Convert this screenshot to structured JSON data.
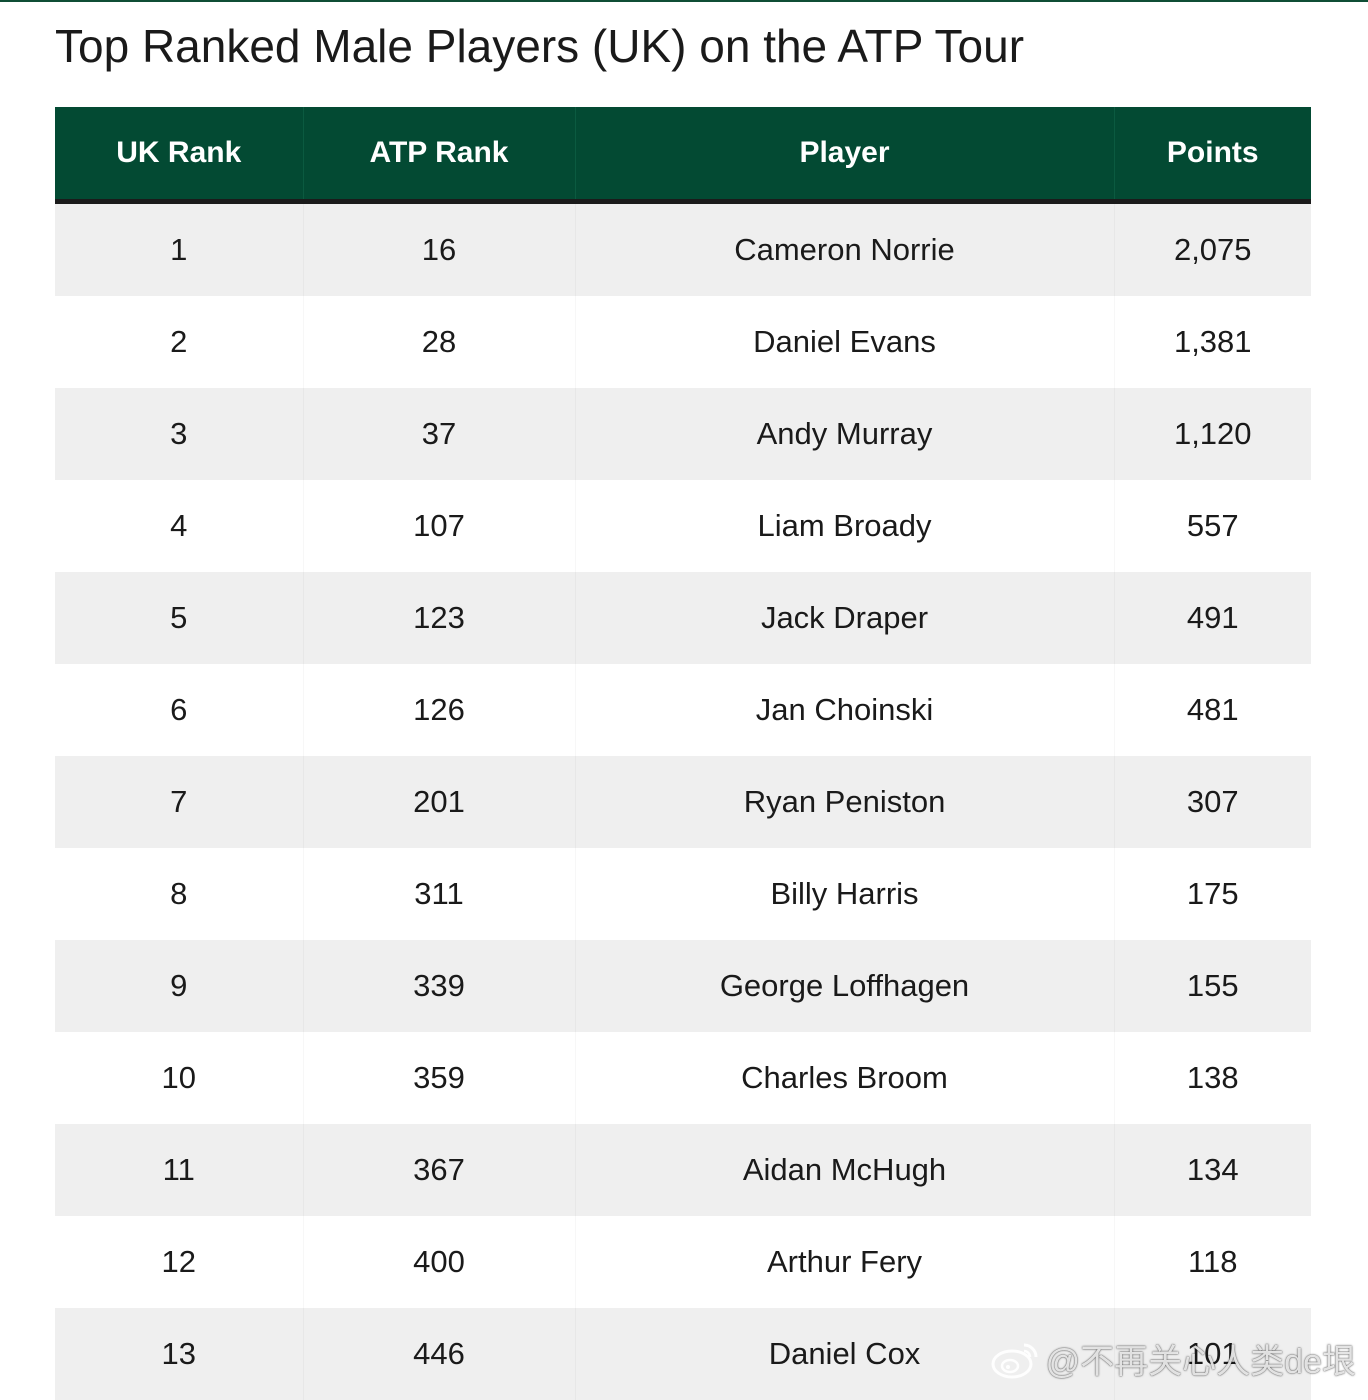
{
  "title": "Top Ranked Male Players (UK) on the ATP Tour",
  "colors": {
    "header_bg": "#034a33",
    "header_text": "#ffffff",
    "row_shade": "#efefef",
    "row_plain": "#ffffff",
    "divider": "#1b1b1b"
  },
  "table": {
    "headers": [
      "UK Rank",
      "ATP Rank",
      "Player",
      "Points"
    ],
    "rows": [
      [
        "1",
        "16",
        "Cameron Norrie",
        "2,075"
      ],
      [
        "2",
        "28",
        "Daniel Evans",
        "1,381"
      ],
      [
        "3",
        "37",
        "Andy Murray",
        "1,120"
      ],
      [
        "4",
        "107",
        "Liam Broady",
        "557"
      ],
      [
        "5",
        "123",
        "Jack Draper",
        "491"
      ],
      [
        "6",
        "126",
        "Jan Choinski",
        "481"
      ],
      [
        "7",
        "201",
        "Ryan Peniston",
        "307"
      ],
      [
        "8",
        "311",
        "Billy Harris",
        "175"
      ],
      [
        "9",
        "339",
        "George Loffhagen",
        "155"
      ],
      [
        "10",
        "359",
        "Charles Broom",
        "138"
      ],
      [
        "11",
        "367",
        "Aidan McHugh",
        "134"
      ],
      [
        "12",
        "400",
        "Arthur Fery",
        "118"
      ],
      [
        "13",
        "446",
        "Daniel Cox",
        "101"
      ]
    ]
  },
  "watermark": {
    "icon": "weibo-icon",
    "text": "@不再关心人类de垠"
  }
}
